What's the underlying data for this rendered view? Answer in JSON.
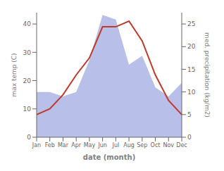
{
  "chart_data": {
    "type": "line",
    "categories": [
      "Jan",
      "Feb",
      "Mar",
      "Apr",
      "May",
      "Jun",
      "Jul",
      "Aug",
      "Sep",
      "Oct",
      "Nov",
      "Dec"
    ],
    "xlabel": "date (month)",
    "ylabel": "max temp (C)",
    "y2label": "med. precipitation (kg/m2)",
    "ylim": [
      0,
      44
    ],
    "yticks": [
      0,
      10,
      20,
      30,
      40
    ],
    "y2lim": [
      0,
      27.5
    ],
    "y2ticks": [
      0,
      5,
      10,
      15,
      20,
      25
    ],
    "grid": false,
    "series": [
      {
        "type": "area",
        "axis": "y2",
        "color": "#b8bfe8",
        "values": [
          10,
          10,
          9,
          10,
          17,
          27,
          26,
          16,
          18,
          11,
          9,
          12
        ]
      },
      {
        "type": "line",
        "color": "#c0392b",
        "values": [
          8,
          10,
          15,
          22,
          28,
          39,
          39,
          41,
          34,
          22,
          13,
          8
        ]
      }
    ]
  }
}
